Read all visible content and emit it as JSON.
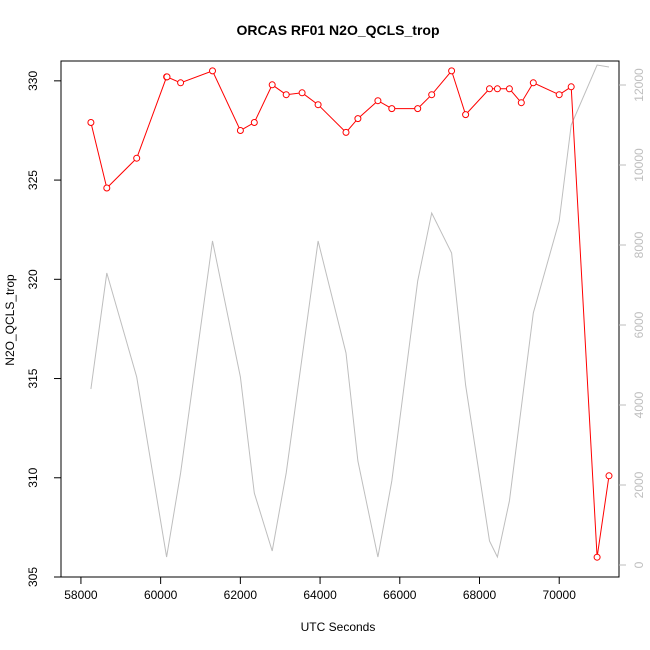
{
  "chart_data": {
    "type": "line",
    "title": "ORCAS RF01 N2O_QCLS_trop",
    "xlabel": "UTC Seconds",
    "ylabel": "N2O_QCLS_trop",
    "xlim": [
      57500,
      71500
    ],
    "ylim": [
      305,
      331
    ],
    "y2lim": [
      -300,
      12600
    ],
    "x_ticks": [
      58000,
      60000,
      62000,
      64000,
      66000,
      68000,
      70000
    ],
    "y_ticks": [
      305,
      310,
      315,
      320,
      325,
      330
    ],
    "y2_ticks": [
      0,
      2000,
      4000,
      6000,
      8000,
      10000,
      12000
    ],
    "grid": false,
    "series": [
      {
        "axis": "left",
        "style": "line+points",
        "color": "#ff0000",
        "x": [
          58250,
          58650,
          59400,
          60150,
          60160,
          60500,
          61300,
          62000,
          62350,
          62800,
          63150,
          63550,
          63950,
          64650,
          64950,
          65450,
          65800,
          66450,
          66800,
          67300,
          67650,
          68250,
          68450,
          68750,
          69050,
          69350,
          70000,
          70300,
          70950,
          71250
        ],
        "y": [
          327.9,
          324.6,
          326.1,
          330.2,
          330.2,
          329.9,
          330.5,
          327.5,
          327.9,
          329.8,
          329.3,
          329.4,
          328.8,
          327.4,
          328.1,
          329.0,
          328.6,
          328.6,
          329.3,
          330.5,
          328.3,
          329.6,
          329.6,
          329.6,
          328.9,
          329.9,
          329.3,
          329.7,
          306.0,
          310.1
        ]
      },
      {
        "axis": "right",
        "style": "line",
        "color": "#bebebe",
        "x": [
          58250,
          58650,
          59400,
          60150,
          60500,
          61300,
          62000,
          62350,
          62800,
          63150,
          63950,
          64650,
          64950,
          65450,
          65800,
          66450,
          66800,
          67300,
          67650,
          68250,
          68450,
          68750,
          69350,
          70000,
          70300,
          70950,
          71250
        ],
        "y": [
          4400,
          7300,
          4700,
          200,
          2300,
          8100,
          4700,
          1800,
          350,
          2300,
          8100,
          5300,
          2600,
          200,
          2100,
          7100,
          8800,
          7800,
          4500,
          600,
          200,
          1600,
          6300,
          8600,
          11000,
          12500,
          12450
        ]
      }
    ]
  }
}
